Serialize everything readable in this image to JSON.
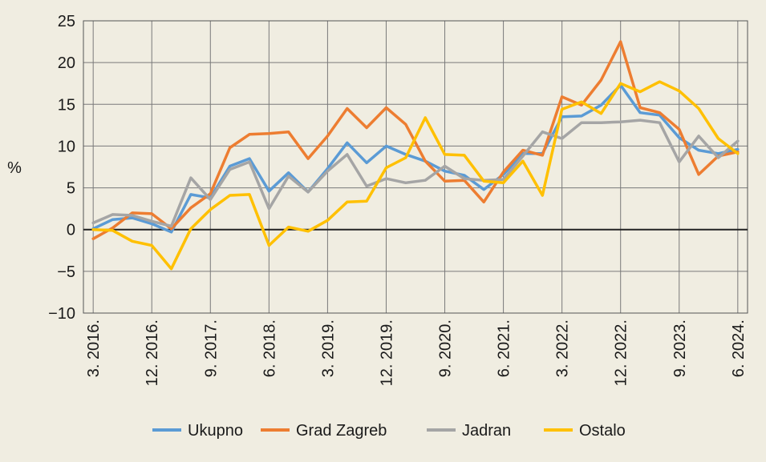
{
  "chart_data": {
    "type": "line",
    "ylabel": "%",
    "ylim": [
      -10,
      25
    ],
    "yticks": [
      25,
      20,
      15,
      10,
      5,
      0,
      -5,
      -10
    ],
    "ytick_labels": [
      "25",
      "20",
      "15",
      "10",
      "5",
      "0",
      "−5",
      "−10"
    ],
    "grid": true,
    "legend_position": "bottom",
    "x": [
      "3.2016.",
      "6.2016.",
      "9.2016.",
      "12.2016.",
      "3.2017.",
      "6.2017.",
      "9.2017.",
      "12.2017.",
      "3.2018.",
      "6.2018.",
      "9.2018.",
      "12.2018.",
      "3.2019.",
      "6.2019.",
      "9.2019.",
      "12.2019.",
      "3.2020.",
      "6.2020.",
      "9.2020.",
      "12.2020.",
      "3.2021.",
      "6.2021.",
      "9.2021.",
      "12.2021.",
      "3.2022.",
      "6.2022.",
      "9.2022.",
      "12.2022.",
      "3.2023.",
      "6.2023.",
      "9.2023.",
      "12.2023.",
      "3.2024.",
      "6.2024."
    ],
    "xtick_labels": [
      "3. 2016.",
      "12. 2016.",
      "9. 2017.",
      "6. 2018.",
      "3. 2019.",
      "12. 2019.",
      "9. 2020.",
      "6. 2021.",
      "3. 2022.",
      "12. 2022.",
      "9. 2023.",
      "6. 2024."
    ],
    "series": [
      {
        "name": "Ukupno",
        "color": "#5b9bd5",
        "values": [
          0.1,
          1.2,
          1.4,
          0.7,
          -0.3,
          4.2,
          3.8,
          7.6,
          8.5,
          4.6,
          6.8,
          4.5,
          7.3,
          10.4,
          8.0,
          10.0,
          9.0,
          8.2,
          7.0,
          6.5,
          4.8,
          6.6,
          9.1,
          9.1,
          13.5,
          13.6,
          14.9,
          17.3,
          14.0,
          13.7,
          11.0,
          9.5,
          9.1,
          9.6
        ]
      },
      {
        "name": "Grad Zagreb",
        "color": "#ed7d31",
        "values": [
          -1.1,
          0.2,
          2.0,
          1.9,
          0.1,
          2.6,
          4.3,
          9.8,
          11.4,
          11.5,
          11.7,
          8.5,
          11.2,
          14.5,
          12.2,
          14.6,
          12.6,
          8.2,
          5.8,
          5.9,
          3.3,
          6.9,
          9.5,
          8.9,
          15.9,
          14.9,
          17.9,
          22.5,
          14.6,
          14.0,
          12.0,
          6.6,
          8.8,
          9.3
        ]
      },
      {
        "name": "Jadran",
        "color": "#a5a5a5",
        "values": [
          0.8,
          1.8,
          1.7,
          1.0,
          0.4,
          6.2,
          3.6,
          7.2,
          8.1,
          2.5,
          6.4,
          4.5,
          7.0,
          9.0,
          5.2,
          6.1,
          5.6,
          5.9,
          7.6,
          6.1,
          5.9,
          6.0,
          8.8,
          11.7,
          10.9,
          12.8,
          12.8,
          12.9,
          13.1,
          12.8,
          8.1,
          11.2,
          8.6,
          10.6
        ]
      },
      {
        "name": "Ostalo",
        "color": "#ffc000",
        "values": [
          0.0,
          -0.1,
          -1.4,
          -1.9,
          -4.7,
          0.1,
          2.4,
          4.1,
          4.2,
          -1.9,
          0.3,
          -0.2,
          1.1,
          3.3,
          3.4,
          7.4,
          8.6,
          13.4,
          9.0,
          8.9,
          5.8,
          5.6,
          8.2,
          4.1,
          14.4,
          15.3,
          13.9,
          17.5,
          16.5,
          17.7,
          16.6,
          14.5,
          10.9,
          9.1
        ]
      }
    ]
  }
}
